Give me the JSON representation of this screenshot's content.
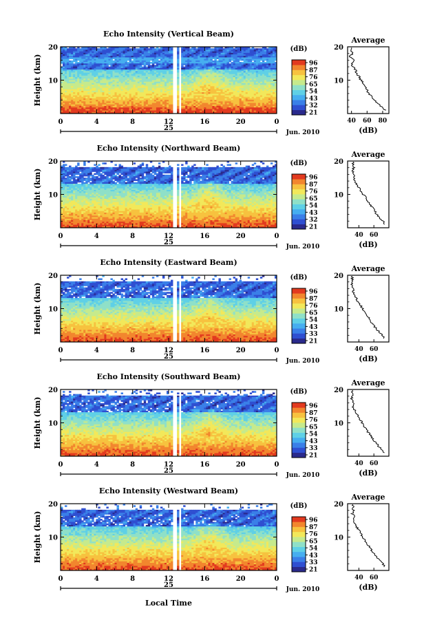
{
  "colorbar_unit": "(dB)",
  "xlabel_bottom": "Local Time",
  "date_suffix": "Jun. 2010",
  "day_label": "25",
  "profile_title": "Average",
  "profile_xlabel": "(dB)",
  "ylabel": "Height (km)",
  "colors": {
    "scale": [
      "#2a2a8c",
      "#2f4fd1",
      "#3a7fe8",
      "#46aef0",
      "#5fd0e6",
      "#8fe0c8",
      "#c6ea8c",
      "#f2e85a",
      "#f7c23f",
      "#f2862e",
      "#e23a1f"
    ],
    "gap": "#ffffff"
  },
  "chart_data": [
    {
      "type": "heatmap",
      "title": "Echo Intensity (Vertical Beam)",
      "x_ticks": [
        "0",
        "4",
        "8",
        "12",
        "16",
        "20",
        "0"
      ],
      "xlim": [
        0,
        24
      ],
      "y_ticks": [
        "20",
        "10"
      ],
      "ylim": [
        0,
        20
      ],
      "colorbar_ticks": [
        "96",
        "87",
        "76",
        "65",
        "54",
        "43",
        "32",
        "21"
      ],
      "profile": {
        "x_ticks": [
          "40",
          "60",
          "80"
        ],
        "xlim": [
          35,
          88
        ],
        "y_ticks": [
          "20",
          "10"
        ],
        "height_km": [
          1,
          2,
          3,
          4,
          5,
          6,
          7,
          8,
          9,
          10,
          11,
          12,
          13,
          14,
          15,
          16,
          17,
          18,
          19
        ],
        "db": [
          84,
          78,
          74,
          70,
          66,
          62,
          60,
          58,
          55,
          52,
          50,
          47,
          45,
          42,
          40,
          44,
          38,
          41,
          40
        ]
      }
    },
    {
      "type": "heatmap",
      "title": "Echo Intensity (Northward Beam)",
      "x_ticks": [
        "0",
        "4",
        "8",
        "12",
        "16",
        "20",
        "0"
      ],
      "xlim": [
        0,
        24
      ],
      "y_ticks": [
        "20",
        "10"
      ],
      "ylim": [
        0,
        20
      ],
      "colorbar_ticks": [
        "96",
        "87",
        "76",
        "65",
        "54",
        "43",
        "32",
        "21"
      ],
      "profile": {
        "x_ticks": [
          "40",
          "60"
        ],
        "xlim": [
          25,
          80
        ],
        "y_ticks": [
          "20",
          "10"
        ],
        "height_km": [
          1,
          2,
          3,
          4,
          5,
          6,
          7,
          8,
          9,
          10,
          11,
          12,
          13,
          14,
          15,
          16,
          17,
          18,
          19
        ],
        "db": [
          75,
          72,
          68,
          64,
          61,
          58,
          55,
          52,
          49,
          46,
          43,
          40,
          37,
          35,
          33,
          34,
          31,
          33,
          32
        ]
      }
    },
    {
      "type": "heatmap",
      "title": "Echo Intensity (Eastward Beam)",
      "x_ticks": [
        "0",
        "4",
        "8",
        "12",
        "16",
        "20",
        "0"
      ],
      "xlim": [
        0,
        24
      ],
      "y_ticks": [
        "20",
        "10"
      ],
      "ylim": [
        0,
        20
      ],
      "colorbar_ticks": [
        "96",
        "87",
        "76",
        "65",
        "54",
        "43",
        "33",
        "21"
      ],
      "profile": {
        "x_ticks": [
          "40",
          "60"
        ],
        "xlim": [
          25,
          80
        ],
        "y_ticks": [
          "20",
          "10"
        ],
        "height_km": [
          1,
          2,
          3,
          4,
          5,
          6,
          7,
          8,
          9,
          10,
          11,
          12,
          13,
          14,
          15,
          16,
          17,
          18,
          19
        ],
        "db": [
          74,
          71,
          67,
          63,
          60,
          57,
          54,
          51,
          48,
          45,
          42,
          39,
          37,
          34,
          32,
          34,
          30,
          32,
          31
        ]
      }
    },
    {
      "type": "heatmap",
      "title": "Echo Intensity (Southward Beam)",
      "x_ticks": [
        "0",
        "4",
        "8",
        "12",
        "16",
        "20",
        "0"
      ],
      "xlim": [
        0,
        24
      ],
      "y_ticks": [
        "20",
        "10"
      ],
      "ylim": [
        0,
        20
      ],
      "colorbar_ticks": [
        "96",
        "87",
        "76",
        "65",
        "54",
        "43",
        "33",
        "21"
      ],
      "profile": {
        "x_ticks": [
          "40",
          "60"
        ],
        "xlim": [
          25,
          80
        ],
        "y_ticks": [
          "20",
          "10"
        ],
        "height_km": [
          1,
          2,
          3,
          4,
          5,
          6,
          7,
          8,
          9,
          10,
          11,
          12,
          13,
          14,
          15,
          16,
          17,
          18,
          19
        ],
        "db": [
          74,
          70,
          66,
          63,
          59,
          56,
          53,
          50,
          47,
          44,
          42,
          39,
          36,
          34,
          32,
          34,
          30,
          32,
          31
        ]
      }
    },
    {
      "type": "heatmap",
      "title": "Echo Intensity (Westward Beam)",
      "x_ticks": [
        "0",
        "4",
        "8",
        "12",
        "16",
        "20",
        "0"
      ],
      "xlim": [
        0,
        24
      ],
      "y_ticks": [
        "20",
        "10"
      ],
      "ylim": [
        0,
        20
      ],
      "colorbar_ticks": [
        "96",
        "87",
        "76",
        "65",
        "54",
        "43",
        "33",
        "21"
      ],
      "profile": {
        "x_ticks": [
          "40",
          "60"
        ],
        "xlim": [
          25,
          80
        ],
        "y_ticks": [
          "20",
          "10"
        ],
        "height_km": [
          1,
          2,
          3,
          4,
          5,
          6,
          7,
          8,
          9,
          10,
          11,
          12,
          13,
          14,
          15,
          16,
          17,
          18,
          19
        ],
        "db": [
          75,
          72,
          68,
          64,
          60,
          57,
          54,
          51,
          48,
          45,
          43,
          40,
          37,
          35,
          33,
          35,
          31,
          33,
          32
        ]
      }
    }
  ]
}
